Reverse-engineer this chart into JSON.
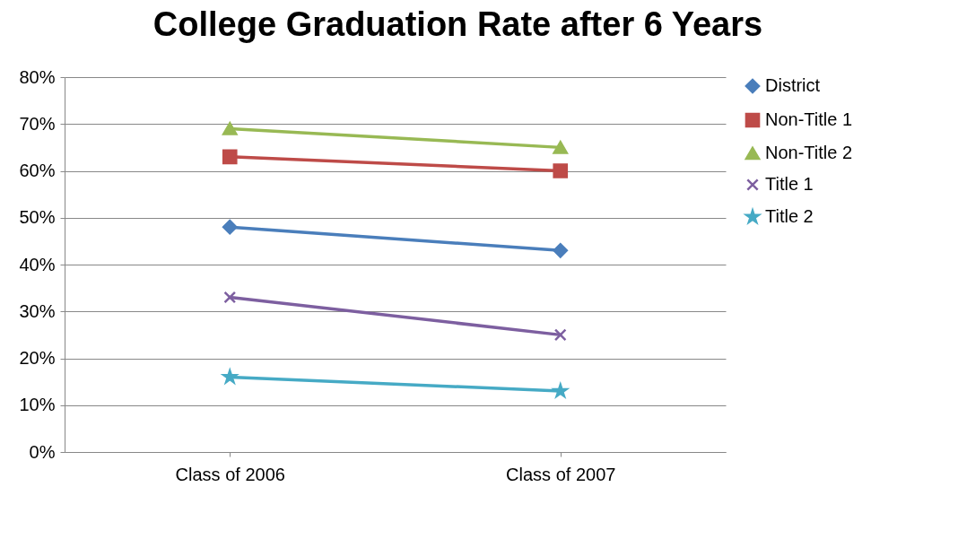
{
  "chart_data": {
    "type": "line",
    "title": "College Graduation Rate after 6 Years",
    "categories": [
      "Class of 2006",
      "Class of 2007"
    ],
    "series": [
      {
        "name": "District",
        "color": "#4a7ebb",
        "values": [
          48,
          43
        ],
        "marker": "diamond"
      },
      {
        "name": "Non-Title 1",
        "color": "#be4b48",
        "values": [
          63,
          60
        ],
        "marker": "square"
      },
      {
        "name": "Non-Title 2",
        "color": "#98b954",
        "values": [
          69,
          65
        ],
        "marker": "triangle"
      },
      {
        "name": "Title 1",
        "color": "#7d5fa0",
        "values": [
          33,
          25
        ],
        "marker": "cross"
      },
      {
        "name": "Title 2",
        "color": "#46aac5",
        "values": [
          16,
          13
        ],
        "marker": "star"
      }
    ],
    "ylim": [
      0,
      80
    ],
    "yticks": [
      {
        "value": 0,
        "label": "0%"
      },
      {
        "value": 10,
        "label": "10%"
      },
      {
        "value": 20,
        "label": "20%"
      },
      {
        "value": 30,
        "label": "30%"
      },
      {
        "value": 40,
        "label": "40%"
      },
      {
        "value": 50,
        "label": "50%"
      },
      {
        "value": 60,
        "label": "60%"
      },
      {
        "value": 70,
        "label": "70%"
      },
      {
        "value": 80,
        "label": "80%"
      }
    ],
    "grid": "y",
    "legend": "right",
    "line_style": "solid"
  }
}
